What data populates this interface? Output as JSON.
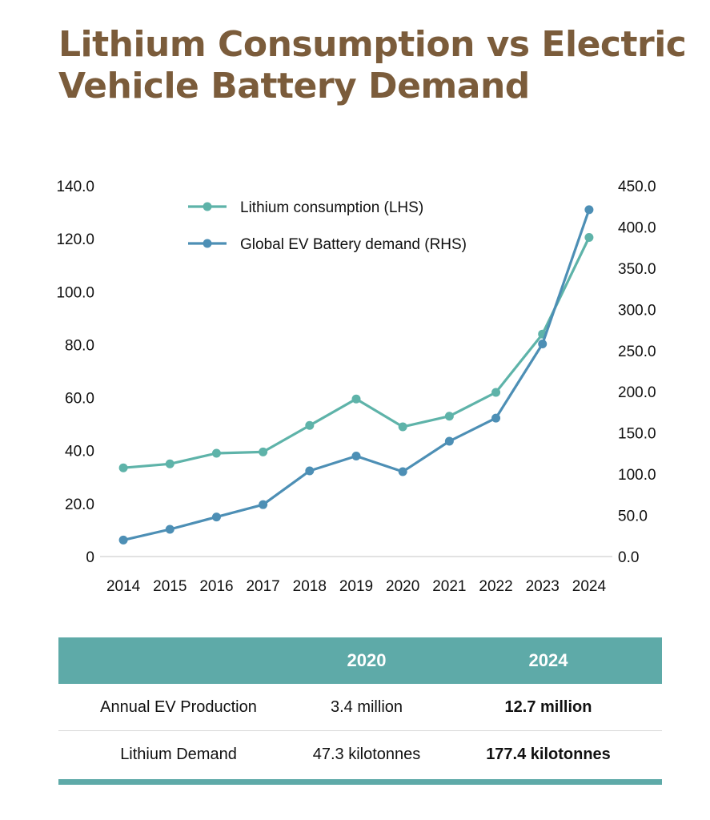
{
  "title": "Lithium Consumption vs Electric Vehicle Battery Demand",
  "chart_data": {
    "type": "line",
    "x": [
      "2014",
      "2015",
      "2016",
      "2017",
      "2018",
      "2019",
      "2020",
      "2021",
      "2022",
      "2023",
      "2024"
    ],
    "series": [
      {
        "name": "Lithium consumption (LHS)",
        "axis": "left",
        "color": "#5eb3a9",
        "values": [
          33.5,
          35.0,
          39.0,
          39.5,
          49.5,
          59.5,
          49.0,
          53.0,
          62.0,
          84.0,
          120.5
        ]
      },
      {
        "name": "Global EV Battery demand (RHS)",
        "axis": "right",
        "color": "#4d8fb5",
        "values": [
          20,
          33,
          48,
          63,
          104,
          122,
          103,
          140,
          168,
          258,
          421
        ]
      }
    ],
    "yleft": {
      "ticks": [
        "0",
        "20.0",
        "40.0",
        "60.0",
        "80.0",
        "100.0",
        "120.0",
        "140.0"
      ],
      "lim": [
        0,
        140
      ]
    },
    "yright": {
      "ticks": [
        "0.0",
        "50.0",
        "100.0",
        "150.0",
        "200.0",
        "250.0",
        "300.0",
        "350.0",
        "400.0",
        "450.0"
      ],
      "lim": [
        0,
        450
      ]
    },
    "grid": false,
    "legend_position": "top-center"
  },
  "table": {
    "headers": [
      "",
      "2020",
      "2024"
    ],
    "rows": [
      [
        "Annual EV Production",
        "3.4 million",
        "12.7 million"
      ],
      [
        "Lithium Demand",
        "47.3 kilotonnes",
        "177.4 kilotonnes"
      ]
    ],
    "header_color": "#5eaaa8"
  }
}
